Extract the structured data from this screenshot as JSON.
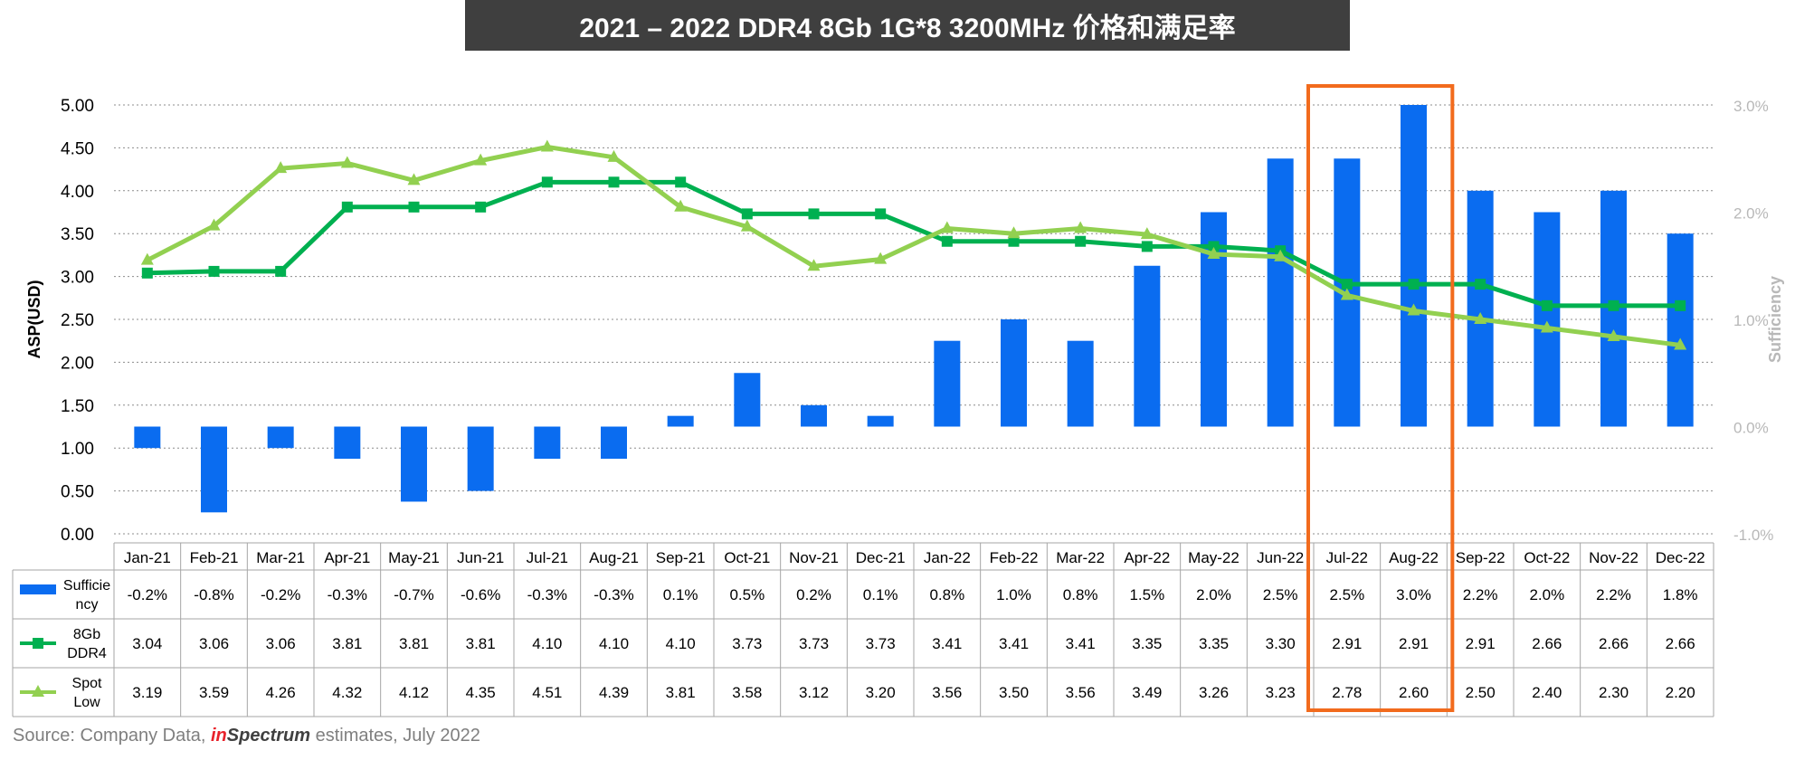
{
  "title": "2021 – 2022 DDR4 8Gb 1G*8 3200MHz 价格和满足率",
  "source": {
    "prefix": "Source: Company Data,",
    "brand_in": "in",
    "brand_spectrum": "Spectrum",
    "suffix": "estimates, July 2022"
  },
  "colors": {
    "sufficiency": "#0a6cf0",
    "ddr4": "#00b050",
    "spot": "#92d050",
    "highlight": "#f26b1d"
  },
  "chart_data": {
    "type": "bar+line",
    "categories": [
      "Jan-21",
      "Feb-21",
      "Mar-21",
      "Apr-21",
      "May-21",
      "Jun-21",
      "Jul-21",
      "Aug-21",
      "Sep-21",
      "Oct-21",
      "Nov-21",
      "Dec-21",
      "Jan-22",
      "Feb-22",
      "Mar-22",
      "Apr-22",
      "May-22",
      "Jun-22",
      "Jul-22",
      "Aug-22",
      "Sep-22",
      "Oct-22",
      "Nov-22",
      "Dec-22"
    ],
    "ylabel": "ASP(USD)",
    "y2label": "Sufficiency",
    "ylim": [
      0,
      5
    ],
    "y_ticks": [
      "0.00",
      "0.50",
      "1.00",
      "1.50",
      "2.00",
      "2.50",
      "3.00",
      "3.50",
      "4.00",
      "4.50",
      "5.00"
    ],
    "y2lim": [
      -1.0,
      3.0
    ],
    "y2_ticks": [
      "-1.0%",
      "0.0%",
      "1.0%",
      "2.0%",
      "3.0%"
    ],
    "grid": true,
    "highlight_categories": [
      "Jul-22",
      "Aug-22"
    ],
    "series": [
      {
        "name": "Sufficiency",
        "type": "bar",
        "axis": "right",
        "values": [
          -0.2,
          -0.8,
          -0.2,
          -0.3,
          -0.7,
          -0.6,
          -0.3,
          -0.3,
          0.1,
          0.5,
          0.2,
          0.1,
          0.8,
          1.0,
          0.8,
          1.5,
          2.0,
          2.5,
          2.5,
          3.0,
          2.2,
          2.0,
          2.2,
          1.8
        ],
        "labels": [
          "-0.2%",
          "-0.8%",
          "-0.2%",
          "-0.3%",
          "-0.7%",
          "-0.6%",
          "-0.3%",
          "-0.3%",
          "0.1%",
          "0.5%",
          "0.2%",
          "0.1%",
          "0.8%",
          "1.0%",
          "0.8%",
          "1.5%",
          "2.0%",
          "2.5%",
          "2.5%",
          "3.0%",
          "2.2%",
          "2.0%",
          "2.2%",
          "1.8%"
        ]
      },
      {
        "name": "8Gb DDR4",
        "type": "line",
        "marker": "square",
        "axis": "left",
        "values": [
          3.04,
          3.06,
          3.06,
          3.81,
          3.81,
          3.81,
          4.1,
          4.1,
          4.1,
          3.73,
          3.73,
          3.73,
          3.41,
          3.41,
          3.41,
          3.35,
          3.35,
          3.3,
          2.91,
          2.91,
          2.91,
          2.66,
          2.66,
          2.66
        ],
        "labels": [
          "3.04",
          "3.06",
          "3.06",
          "3.81",
          "3.81",
          "3.81",
          "4.10",
          "4.10",
          "4.10",
          "3.73",
          "3.73",
          "3.73",
          "3.41",
          "3.41",
          "3.41",
          "3.35",
          "3.35",
          "3.30",
          "2.91",
          "2.91",
          "2.91",
          "2.66",
          "2.66",
          "2.66"
        ]
      },
      {
        "name": "Spot Low",
        "type": "line",
        "marker": "triangle",
        "axis": "left",
        "values": [
          3.19,
          3.59,
          4.26,
          4.32,
          4.12,
          4.35,
          4.51,
          4.39,
          3.81,
          3.58,
          3.12,
          3.2,
          3.56,
          3.5,
          3.56,
          3.49,
          3.26,
          3.23,
          2.78,
          2.6,
          2.5,
          2.4,
          2.3,
          2.2
        ],
        "labels": [
          "3.19",
          "3.59",
          "4.26",
          "4.32",
          "4.12",
          "4.35",
          "4.51",
          "4.39",
          "3.81",
          "3.58",
          "3.12",
          "3.20",
          "3.56",
          "3.50",
          "3.56",
          "3.49",
          "3.26",
          "3.23",
          "2.78",
          "2.60",
          "2.50",
          "2.40",
          "2.30",
          "2.20"
        ]
      }
    ],
    "table_legend_labels": [
      [
        "Sufficie",
        "ncy"
      ],
      [
        "8Gb",
        "DDR4"
      ],
      [
        "Spot",
        "Low"
      ]
    ]
  }
}
